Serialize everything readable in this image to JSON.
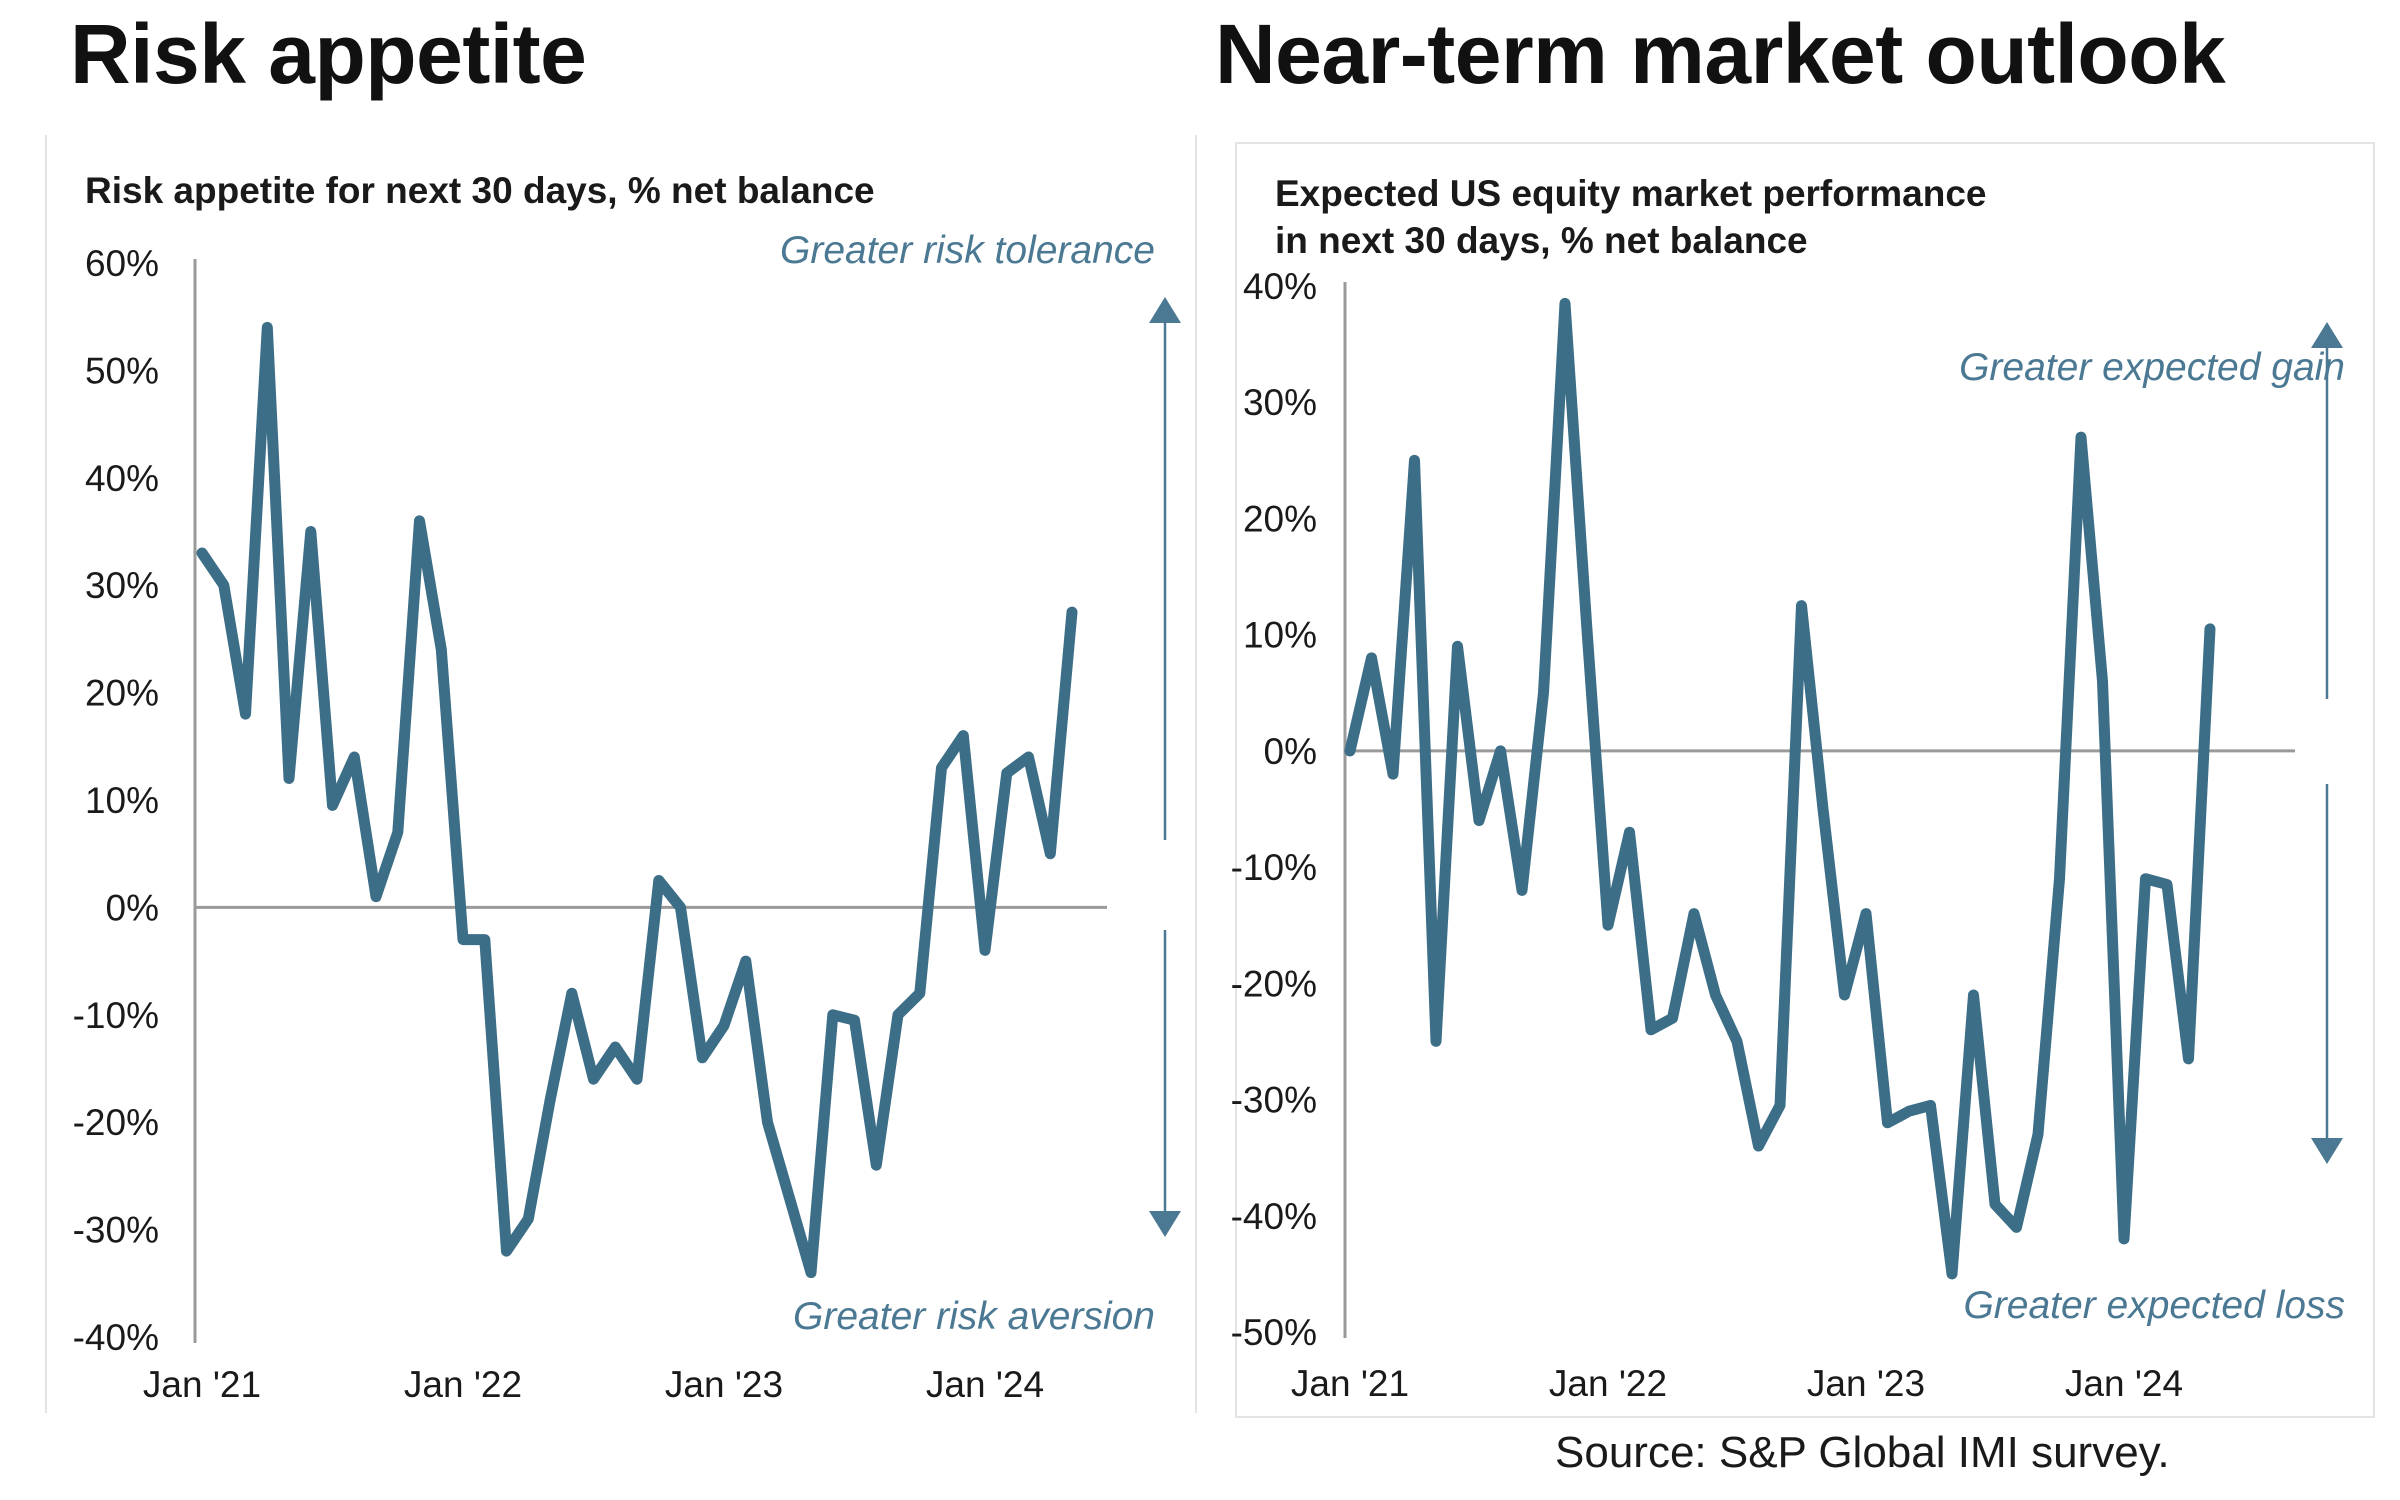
{
  "headings": {
    "left": "Risk appetite",
    "right": "Near-term market outlook"
  },
  "source": "Source: S&P Global IMI survey.",
  "colors": {
    "line": "#3c6e87",
    "annotation": "#4b7893",
    "axis": "#9a9a9a",
    "zero_line": "#9a9a9a"
  },
  "chart_data": [
    {
      "type": "line",
      "title": "Risk appetite for next 30 days, % net balance",
      "xlabel": "",
      "ylabel": "",
      "ylim": [
        -40,
        60
      ],
      "y_ticks": [
        "60%",
        "50%",
        "40%",
        "30%",
        "20%",
        "10%",
        "0%",
        "-10%",
        "-20%",
        "-30%",
        "-40%"
      ],
      "x_tick_labels": [
        "Jan '21",
        "Jan '22",
        "Jan '23",
        "Jan '24"
      ],
      "x_start": "Jan '21",
      "frequency": "monthly",
      "annotations": {
        "top": "Greater risk tolerance",
        "bottom": "Greater risk aversion"
      },
      "grid": false,
      "series": [
        {
          "values": [
            33,
            30,
            18,
            54,
            12,
            35,
            9.5,
            14,
            1,
            7,
            36,
            24,
            -3,
            -3,
            -32,
            -29,
            -18,
            -8,
            -16,
            -13,
            -16,
            2.5,
            0,
            -14,
            -11,
            -5,
            -20,
            -27,
            -34,
            -10,
            -10.5,
            -24,
            -10,
            -8,
            13,
            16,
            -4,
            12.5,
            14,
            5,
            27.5
          ]
        }
      ]
    },
    {
      "type": "line",
      "title": "Expected US equity market performance in next 30 days, % net balance",
      "xlabel": "",
      "ylabel": "",
      "ylim": [
        -50,
        40
      ],
      "y_ticks": [
        "40%",
        "30%",
        "20%",
        "10%",
        "0%",
        "-10%",
        "-20%",
        "-30%",
        "-40%",
        "-50%"
      ],
      "x_tick_labels": [
        "Jan '21",
        "Jan '22",
        "Jan '23",
        "Jan '24"
      ],
      "x_start": "Jan '21",
      "frequency": "monthly",
      "annotations": {
        "top": "Greater expected gain",
        "bottom": "Greater  expected loss"
      },
      "grid": false,
      "series": [
        {
          "values": [
            0,
            8,
            -2,
            25,
            -25,
            9,
            -6,
            0,
            -12,
            5,
            38.5,
            11,
            -15,
            -7,
            -24,
            -23,
            -14,
            -21,
            -25,
            -34,
            -30.5,
            12.5,
            -5,
            -21,
            -14,
            -32,
            -31,
            -30.5,
            -45,
            -21,
            -39,
            -41,
            -33,
            -11,
            27,
            6,
            -42,
            -11,
            -11.5,
            -26.5,
            10.5
          ]
        }
      ]
    }
  ]
}
